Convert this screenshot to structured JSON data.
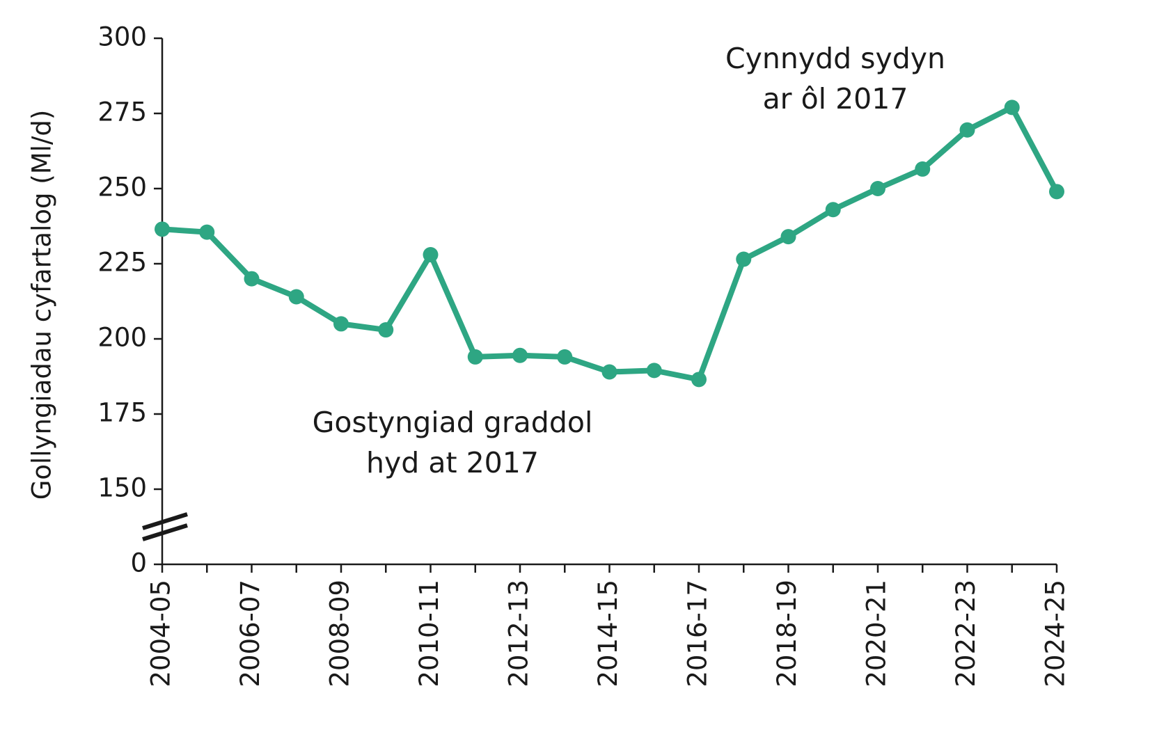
{
  "chart_data": {
    "type": "line",
    "y_label": "Gollyngiadau cyfartalog (Ml/d)",
    "categories": [
      "2004-05",
      null,
      "2006-07",
      null,
      "2008-09",
      null,
      "2010-11",
      null,
      "2012-13",
      null,
      "2014-15",
      null,
      "2016-17",
      null,
      "2018-19",
      null,
      "2020-21",
      null,
      "2022-23",
      null,
      "2024-25"
    ],
    "series": [
      {
        "color": "#2ea683",
        "values": [
          236.5,
          235.5,
          220,
          214,
          205,
          203,
          228,
          194,
          194.5,
          194,
          189,
          189.5,
          186.5,
          226.5,
          234,
          243,
          250,
          256.5,
          269.5,
          277,
          249
        ]
      }
    ],
    "ylim": [
      0,
      300
    ],
    "yticks": [
      0,
      150,
      175,
      200,
      225,
      250,
      275,
      300
    ],
    "axis_break": true,
    "annotations": [
      {
        "lines": [
          "Gostyngiad graddol",
          "hyd at 2017"
        ]
      },
      {
        "lines": [
          "Cynnydd sydyn",
          "ar ôl 2017"
        ]
      }
    ]
  }
}
